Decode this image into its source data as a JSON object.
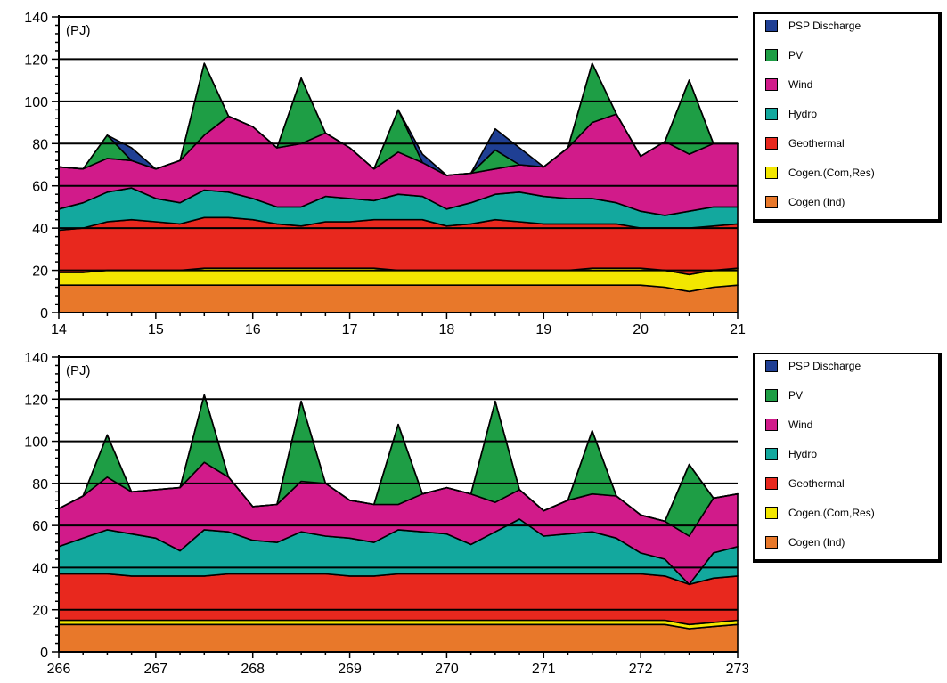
{
  "chart_data": [
    {
      "type": "area",
      "stacked": true,
      "unit_label": "(PJ)",
      "ylim": [
        0,
        140
      ],
      "yticks": [
        0,
        20,
        40,
        60,
        80,
        100,
        120,
        140
      ],
      "ytick_labels": [
        "0",
        "20",
        "40",
        "60",
        "80",
        "100",
        "120",
        "140"
      ],
      "xlim": [
        14,
        21
      ],
      "xticks": [
        14,
        15,
        16,
        17,
        18,
        19,
        20,
        21
      ],
      "xtick_labels": [
        "14",
        "15",
        "16",
        "17",
        "18",
        "19",
        "20",
        "21"
      ],
      "grid": "horizontal",
      "legend_position": "right",
      "x": [
        14.0,
        14.25,
        14.5,
        14.75,
        15.0,
        15.25,
        15.5,
        15.75,
        16.0,
        16.25,
        16.5,
        16.75,
        17.0,
        17.25,
        17.5,
        17.75,
        18.0,
        18.25,
        18.5,
        18.75,
        19.0,
        19.25,
        19.5,
        19.75,
        20.0,
        20.25,
        20.5,
        20.75,
        21.0
      ],
      "series": [
        {
          "name": "Cogen (Ind)",
          "color": "#E8782A",
          "values": [
            13,
            13,
            13,
            13,
            13,
            13,
            13,
            13,
            13,
            13,
            13,
            13,
            13,
            13,
            13,
            13,
            13,
            13,
            13,
            13,
            13,
            13,
            13,
            13,
            13,
            12,
            10,
            12,
            13
          ]
        },
        {
          "name": "Cogen.(Com,Res)",
          "color": "#F2E600",
          "values": [
            6,
            6,
            7,
            7,
            7,
            7,
            8,
            8,
            8,
            8,
            8,
            8,
            8,
            8,
            7,
            7,
            7,
            7,
            7,
            7,
            7,
            7,
            8,
            8,
            8,
            8,
            8,
            8,
            8
          ]
        },
        {
          "name": "Geothermal",
          "color": "#E8281E",
          "values": [
            20,
            21,
            23,
            24,
            23,
            22,
            24,
            24,
            23,
            21,
            20,
            22,
            22,
            23,
            24,
            24,
            21,
            22,
            24,
            23,
            22,
            22,
            21,
            21,
            19,
            20,
            22,
            21,
            21
          ]
        },
        {
          "name": "Hydro",
          "color": "#13A89E",
          "values": [
            10,
            12,
            14,
            15,
            11,
            10,
            13,
            12,
            10,
            8,
            9,
            12,
            11,
            9,
            12,
            11,
            8,
            10,
            12,
            14,
            13,
            12,
            12,
            10,
            8,
            6,
            8,
            9,
            8
          ]
        },
        {
          "name": "Wind",
          "color": "#D11B8A",
          "values": [
            20,
            16,
            16,
            13,
            14,
            20,
            26,
            36,
            34,
            28,
            30,
            30,
            24,
            15,
            20,
            16,
            16,
            14,
            12,
            13,
            14,
            24,
            36,
            42,
            26,
            35,
            27,
            30,
            30
          ]
        },
        {
          "name": "PV",
          "color": "#1E9E45",
          "values": [
            0,
            0,
            11,
            0,
            0,
            0,
            34,
            0,
            0,
            0,
            31,
            0,
            0,
            0,
            20,
            0,
            0,
            0,
            9,
            0,
            0,
            0,
            28,
            0,
            0,
            0,
            35,
            0,
            0
          ]
        },
        {
          "name": "PSP Discharge",
          "color": "#1F3F94",
          "values": [
            0,
            0,
            0,
            6,
            0,
            0,
            0,
            0,
            0,
            0,
            0,
            0,
            0,
            0,
            0,
            4,
            0,
            0,
            10,
            8,
            0,
            0,
            0,
            0,
            0,
            0,
            0,
            0,
            0
          ]
        }
      ]
    },
    {
      "type": "area",
      "stacked": true,
      "unit_label": "(PJ)",
      "ylim": [
        0,
        140
      ],
      "yticks": [
        0,
        20,
        40,
        60,
        80,
        100,
        120,
        140
      ],
      "ytick_labels": [
        "0",
        "20",
        "40",
        "60",
        "80",
        "100",
        "120",
        "140"
      ],
      "xlim": [
        266,
        273
      ],
      "xticks": [
        266,
        267,
        268,
        269,
        270,
        271,
        272,
        273
      ],
      "xtick_labels": [
        "266",
        "267",
        "268",
        "269",
        "270",
        "271",
        "272",
        "273"
      ],
      "grid": "horizontal",
      "legend_position": "right",
      "x": [
        266.0,
        266.25,
        266.5,
        266.75,
        267.0,
        267.25,
        267.5,
        267.75,
        268.0,
        268.25,
        268.5,
        268.75,
        269.0,
        269.25,
        269.5,
        269.75,
        270.0,
        270.25,
        270.5,
        270.75,
        271.0,
        271.25,
        271.5,
        271.75,
        272.0,
        272.25,
        272.5,
        272.75,
        273.0
      ],
      "series": [
        {
          "name": "Cogen (Ind)",
          "color": "#E8782A",
          "values": [
            13,
            13,
            13,
            13,
            13,
            13,
            13,
            13,
            13,
            13,
            13,
            13,
            13,
            13,
            13,
            13,
            13,
            13,
            13,
            13,
            13,
            13,
            13,
            13,
            13,
            13,
            11,
            12,
            13
          ]
        },
        {
          "name": "Cogen.(Com,Res)",
          "color": "#F2E600",
          "values": [
            2,
            2,
            2,
            2,
            2,
            2,
            2,
            2,
            2,
            2,
            2,
            2,
            2,
            2,
            2,
            2,
            2,
            2,
            2,
            2,
            2,
            2,
            2,
            2,
            2,
            2,
            2,
            2,
            2
          ]
        },
        {
          "name": "Geothermal",
          "color": "#E8281E",
          "values": [
            22,
            22,
            22,
            21,
            21,
            21,
            21,
            22,
            22,
            22,
            22,
            22,
            21,
            21,
            22,
            22,
            22,
            22,
            22,
            22,
            22,
            22,
            22,
            22,
            22,
            21,
            19,
            21,
            21
          ]
        },
        {
          "name": "Hydro",
          "color": "#13A89E",
          "values": [
            13,
            17,
            21,
            20,
            18,
            12,
            22,
            20,
            16,
            15,
            20,
            18,
            18,
            16,
            21,
            20,
            19,
            14,
            20,
            26,
            18,
            19,
            20,
            17,
            10,
            8,
            0,
            12,
            14
          ]
        },
        {
          "name": "Wind",
          "color": "#D11B8A",
          "values": [
            18,
            20,
            25,
            20,
            23,
            30,
            32,
            26,
            16,
            18,
            24,
            25,
            18,
            18,
            12,
            18,
            22,
            24,
            14,
            14,
            12,
            16,
            18,
            20,
            18,
            18,
            23,
            26,
            25
          ]
        },
        {
          "name": "PV",
          "color": "#1E9E45",
          "values": [
            0,
            0,
            20,
            0,
            0,
            0,
            32,
            0,
            0,
            0,
            38,
            0,
            0,
            0,
            38,
            0,
            0,
            0,
            48,
            0,
            0,
            0,
            30,
            0,
            0,
            0,
            34,
            0,
            0
          ]
        },
        {
          "name": "PSP Discharge",
          "color": "#1F3F94",
          "values": [
            0,
            0,
            0,
            0,
            0,
            0,
            0,
            0,
            0,
            0,
            0,
            0,
            0,
            0,
            0,
            0,
            0,
            0,
            0,
            0,
            0,
            0,
            0,
            0,
            0,
            0,
            0,
            0,
            0
          ]
        }
      ]
    }
  ],
  "legend": {
    "items": [
      {
        "label": "PSP Discharge",
        "color": "#1F3F94"
      },
      {
        "label": "PV",
        "color": "#1E9E45"
      },
      {
        "label": "Wind",
        "color": "#D11B8A"
      },
      {
        "label": "Hydro",
        "color": "#13A89E"
      },
      {
        "label": "Geothermal",
        "color": "#E8281E"
      },
      {
        "label": "Cogen.(Com,Res)",
        "color": "#F2E600"
      },
      {
        "label": "Cogen (Ind)",
        "color": "#E8782A"
      }
    ]
  }
}
